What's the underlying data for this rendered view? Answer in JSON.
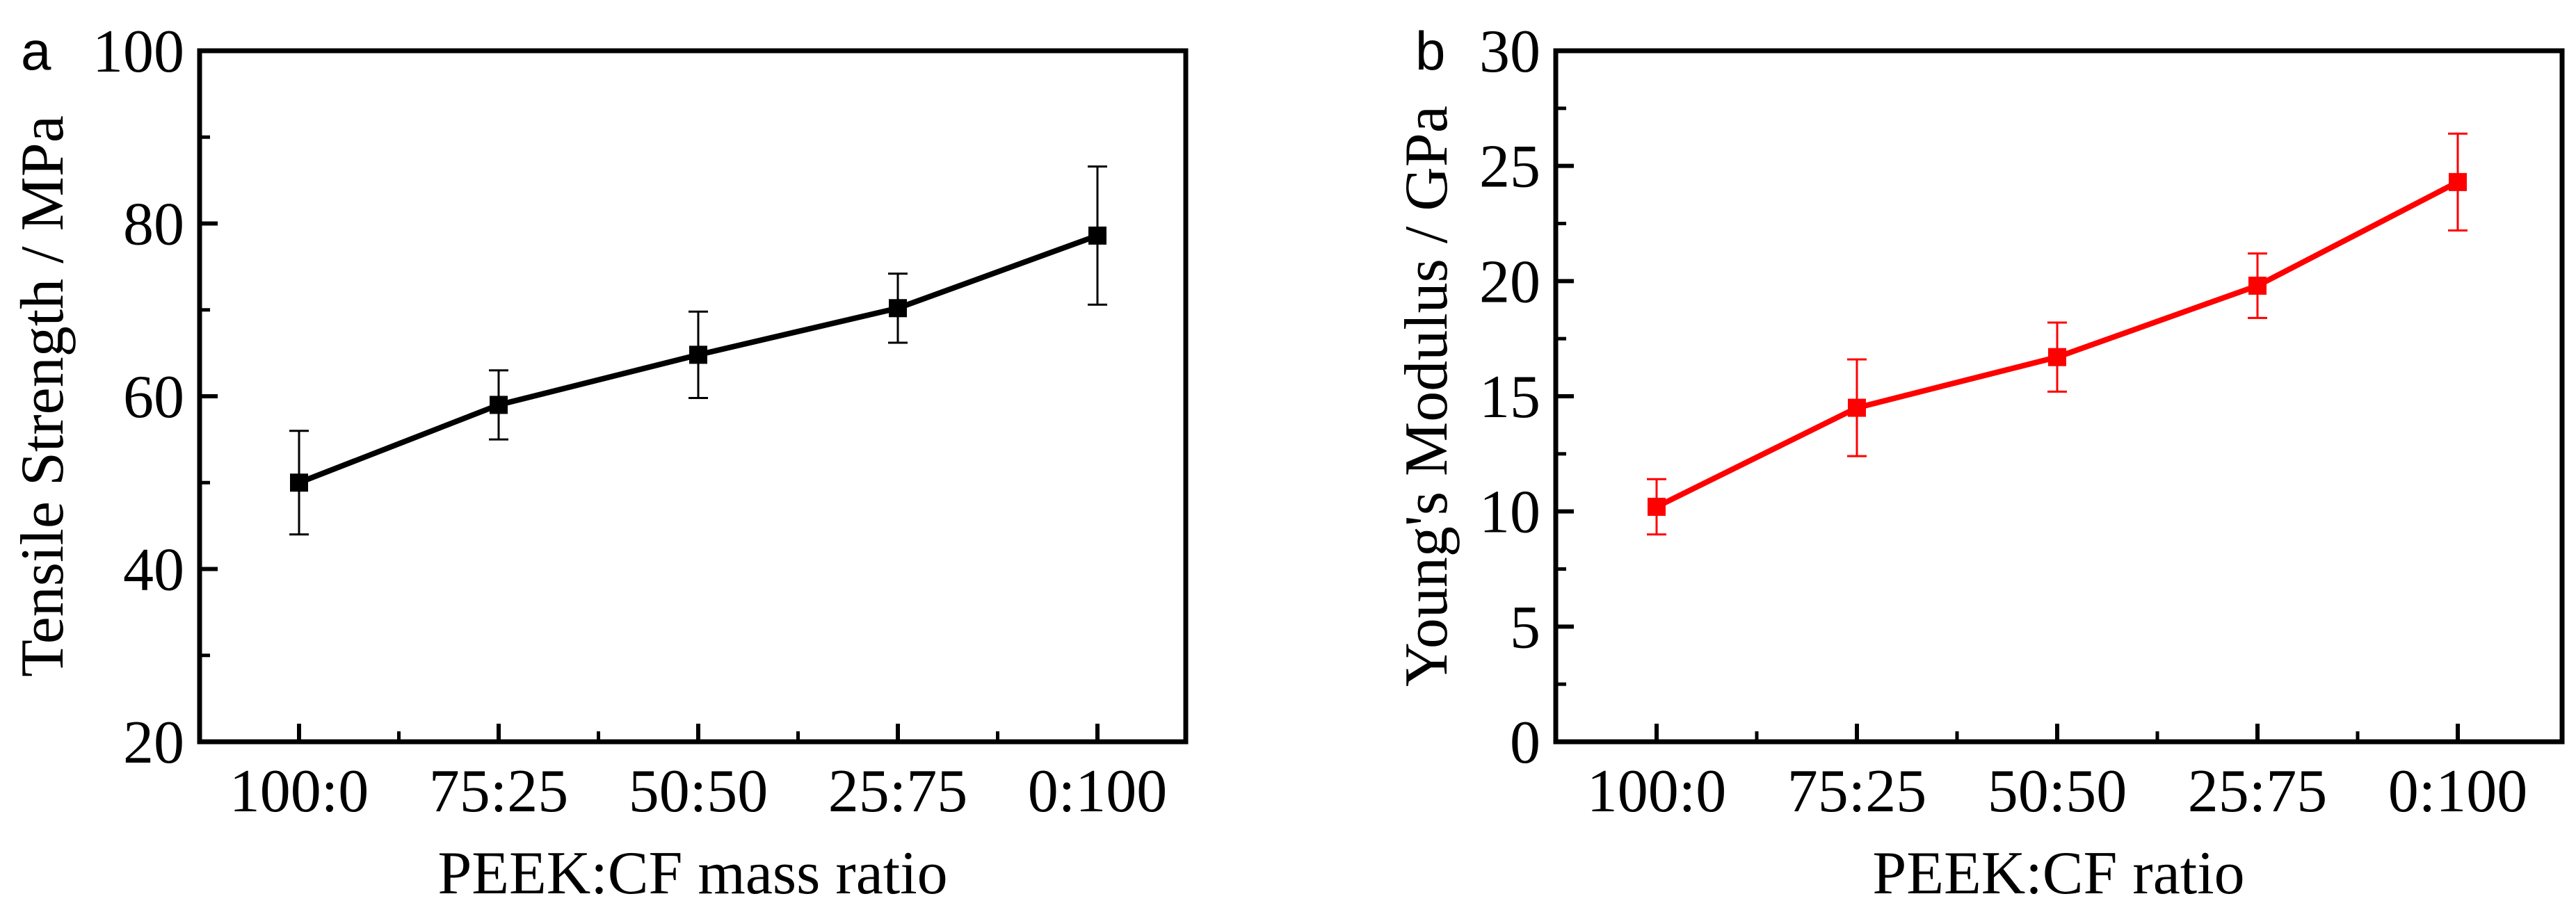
{
  "chart_data": [
    {
      "panel_label": "a",
      "type": "line",
      "categories": [
        "100:0",
        "75:25",
        "50:50",
        "25:75",
        "0:100"
      ],
      "series": [
        {
          "name": "Tensile Strength",
          "values": [
            50,
            59,
            64.8,
            70.2,
            78.6
          ],
          "errors": [
            6,
            4,
            5,
            4,
            8
          ],
          "color": "#000000"
        }
      ],
      "title": "",
      "xlabel": "PEEK:CF mass ratio",
      "ylabel": "Tensile Strength / MPa",
      "ylim": [
        20,
        100
      ],
      "yticks": [
        20,
        40,
        60,
        80,
        100
      ],
      "grid": false
    },
    {
      "panel_label": "b",
      "type": "line",
      "categories": [
        "100:0",
        "75:25",
        "50:50",
        "25:75",
        "0:100"
      ],
      "series": [
        {
          "name": "Young's Modulus",
          "values": [
            10.2,
            14.5,
            16.7,
            19.8,
            24.3
          ],
          "errors": [
            1.2,
            2.1,
            1.5,
            1.4,
            2.1
          ],
          "color": "#ff0000"
        }
      ],
      "title": "",
      "xlabel": "PEEK:CF ratio",
      "ylabel": "Young's Modulus / GPa",
      "ylim": [
        0,
        30
      ],
      "yticks": [
        0,
        5,
        10,
        15,
        20,
        25,
        30
      ],
      "grid": false
    }
  ]
}
